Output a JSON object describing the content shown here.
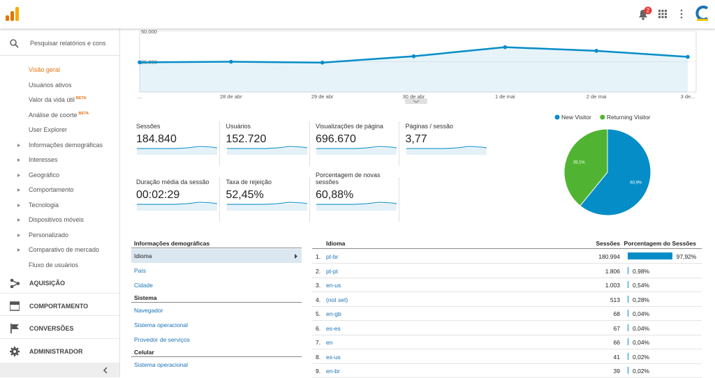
{
  "topbar": {
    "notifications": "2"
  },
  "sidebar": {
    "search": "Pesquisar relatórios e cons",
    "items": [
      {
        "label": "Visão geral",
        "active": true
      },
      {
        "label": "Usuários ativos"
      },
      {
        "label": "Valor da vida útil",
        "badge": "BETA"
      },
      {
        "label": "Análise de coorte",
        "badge": "BETA"
      },
      {
        "label": "User Explorer"
      },
      {
        "label": "Informações demográficas",
        "expandable": true
      },
      {
        "label": "Interesses",
        "expandable": true
      },
      {
        "label": "Geográfico",
        "expandable": true
      },
      {
        "label": "Comportamento",
        "expandable": true
      },
      {
        "label": "Tecnologia",
        "expandable": true
      },
      {
        "label": "Dispositivos móveis",
        "expandable": true
      },
      {
        "label": "Personalizado",
        "expandable": true
      },
      {
        "label": "Comparativo de mercado",
        "expandable": true
      },
      {
        "label": "Fluxo de usuários"
      }
    ],
    "sections": [
      "AQUISIÇÃO",
      "COMPORTAMENTO",
      "CONVERSÕES",
      "ADMINISTRADOR"
    ]
  },
  "chart_data": [
    {
      "type": "line",
      "categories": [
        "...",
        "28 de abr",
        "29 de abr",
        "30 de abr",
        "1 de mai",
        "2 de mai",
        "3 de..."
      ],
      "series": [
        {
          "color": "#058dc7",
          "values": [
            24500,
            25000,
            24300,
            29500,
            37000,
            34000,
            29000
          ]
        }
      ],
      "ylim": [
        0,
        50000
      ],
      "yticks": [
        {
          "value": 25000,
          "label": "25.000"
        },
        {
          "value": 50000,
          "label": "50.000"
        }
      ]
    },
    {
      "type": "pie",
      "labels": [
        "New Visitor",
        "Returning Visitor"
      ],
      "values": [
        60.9,
        39.1
      ],
      "value_labels": [
        "60,9%",
        "39,1%"
      ],
      "colors": [
        "#058dc7",
        "#50b432"
      ],
      "legend": "top"
    }
  ],
  "metrics": [
    {
      "label": "Sessões",
      "value": "184.840"
    },
    {
      "label": "Usuários",
      "value": "152.720"
    },
    {
      "label": "Visualizações de página",
      "value": "696.670"
    },
    {
      "label": "Páginas / sessão",
      "value": "3,77"
    },
    {
      "label": "Duração média da sessão",
      "value": "00:02:29"
    },
    {
      "label": "Taxa de rejeição",
      "value": "52,45%"
    },
    {
      "label": "Porcentagem de novas sessões",
      "value": "60,88%"
    }
  ],
  "dimensions": [
    {
      "title": "Informações demográficas",
      "items": [
        "Idioma",
        "País",
        "Cidade"
      ]
    },
    {
      "title": "Sistema",
      "items": [
        "Navegador",
        "Sistema operacional",
        "Provedor de serviços"
      ]
    },
    {
      "title": "Celular",
      "items": [
        "Sistema operacional"
      ]
    }
  ],
  "table": {
    "headers": [
      "Idioma",
      "Sessões",
      "Porcentagem do Sessões"
    ],
    "rows": [
      {
        "rank": "1.",
        "name": "pt-br",
        "sessions": "180.994",
        "percent": 97.92,
        "percent_label": "97,92%"
      },
      {
        "rank": "2.",
        "name": "pt-pt",
        "sessions": "1.806",
        "percent": 0.98,
        "percent_label": "0,98%"
      },
      {
        "rank": "3.",
        "name": "en-us",
        "sessions": "1.003",
        "percent": 0.54,
        "percent_label": "0,54%"
      },
      {
        "rank": "4.",
        "name": "(not set)",
        "sessions": "513",
        "percent": 0.28,
        "percent_label": "0,28%"
      },
      {
        "rank": "5.",
        "name": "en-gb",
        "sessions": "68",
        "percent": 0.04,
        "percent_label": "0,04%"
      },
      {
        "rank": "6.",
        "name": "es-es",
        "sessions": "67",
        "percent": 0.04,
        "percent_label": "0,04%"
      },
      {
        "rank": "7.",
        "name": "en",
        "sessions": "66",
        "percent": 0.04,
        "percent_label": "0,04%"
      },
      {
        "rank": "8.",
        "name": "es-us",
        "sessions": "41",
        "percent": 0.02,
        "percent_label": "0,02%"
      },
      {
        "rank": "9.",
        "name": "en-br",
        "sessions": "39",
        "percent": 0.02,
        "percent_label": "0,02%"
      }
    ]
  }
}
